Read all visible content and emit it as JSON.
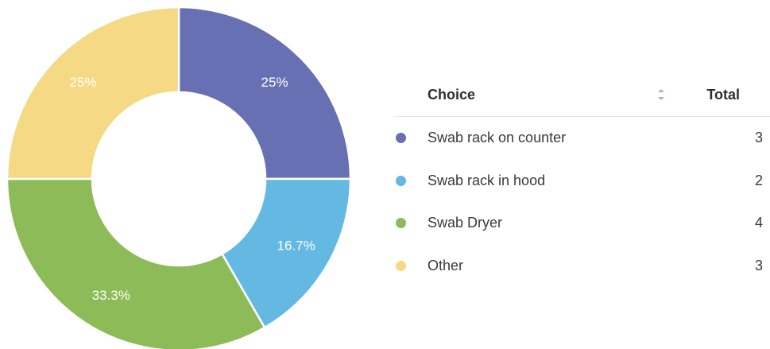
{
  "chart_data": {
    "type": "pie",
    "donut": true,
    "categories": [
      "Swab rack on counter",
      "Swab rack in hood",
      "Swab Dryer",
      "Other"
    ],
    "values": [
      3,
      2,
      4,
      3
    ],
    "percent_labels": [
      "25%",
      "16.7%",
      "33.3%",
      "25%"
    ],
    "colors": [
      "#6870b4",
      "#64b9e3",
      "#8cbb58",
      "#f6d985"
    ],
    "start": "12 o'clock",
    "direction": "clockwise",
    "legend": "right, as table"
  },
  "legend_table": {
    "header_choice": "Choice",
    "header_total": "Total",
    "sort_icon": "sort-icon",
    "rows": [
      {
        "label": "Swab rack on counter",
        "total": "3",
        "color": "#6870b4"
      },
      {
        "label": "Swab rack in hood",
        "total": "2",
        "color": "#64b9e3"
      },
      {
        "label": "Swab Dryer",
        "total": "4",
        "color": "#8cbb58"
      },
      {
        "label": "Other",
        "total": "3",
        "color": "#f6d985"
      }
    ]
  }
}
